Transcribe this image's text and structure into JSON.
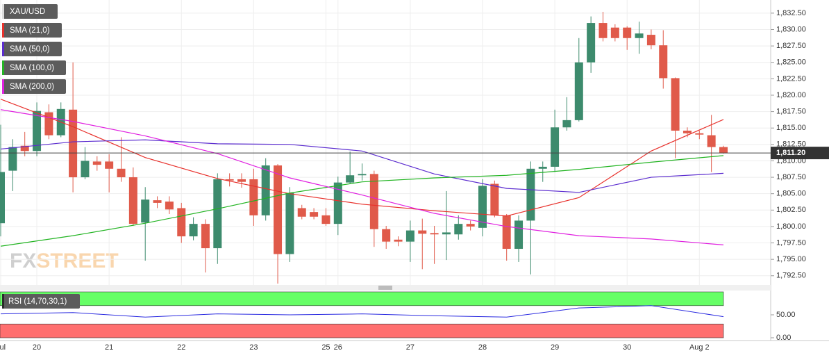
{
  "chart_data": [
    {
      "type": "candlestick",
      "categories": [
        "Jul",
        null,
        null,
        "20",
        null,
        null,
        null,
        null,
        null,
        "21",
        null,
        null,
        null,
        null,
        null,
        "22",
        null,
        null,
        null,
        null,
        null,
        "23",
        null,
        null,
        null,
        null,
        null,
        "25",
        "26",
        null,
        null,
        null,
        null,
        null,
        "27",
        null,
        null,
        null,
        null,
        null,
        "28",
        null,
        null,
        null,
        null,
        null,
        "29",
        null,
        null,
        null,
        null,
        null,
        "30",
        null,
        null,
        null,
        null,
        null,
        "Aug 2",
        null,
        null
      ],
      "series": [
        {
          "name": "XAU/USD",
          "up_color": "#3d8b6d",
          "down_color": "#e05a4a",
          "open": [
            1800.5,
            1808.5,
            1812.3,
            1811.5,
            1817.4,
            1813.9,
            1817.8,
            1807.5,
            1809.9,
            1809.9,
            1808.8,
            1807.5,
            1800.6,
            1804.0,
            1803.8,
            1802.8,
            1798.5,
            1800.4,
            1796.7,
            1807.2,
            1807.2,
            1807.2,
            1801.7,
            1809.3,
            1795.8,
            1802.8,
            1802.2,
            1801.7,
            1800.4,
            1806.7,
            1807.8,
            1808.0,
            1799.6,
            1798.0,
            1797.7,
            1799.4,
            1799.0,
            1798.8,
            1798.8,
            1800.4,
            1799.8,
            1806.5,
            1801.7,
            1796.6,
            1800.9,
            1808.8,
            1809.1,
            1815.1,
            1816.2,
            1825.0,
            1831.0,
            1830.3,
            1830.3,
            1828.7,
            1829.2,
            1827.6,
            1822.6,
            1814.6,
            1814.2,
            1813.9,
            1812.1
          ],
          "high": [
            1815.5,
            1813.3,
            1814.4,
            1818.9,
            1818.6,
            1818.9,
            1825.0,
            1812.1,
            1810.7,
            1811.0,
            1813.6,
            1809.0,
            1806.0,
            1804.6,
            1804.6,
            1803.6,
            1801.4,
            1801.1,
            1808.1,
            1808.1,
            1808.1,
            1808.8,
            1810.4,
            1809.5,
            1806.0,
            1803.3,
            1802.8,
            1802.8,
            1807.6,
            1811.4,
            1809.6,
            1808.5,
            1800.1,
            1798.5,
            1800.9,
            1801.2,
            1800.1,
            1805.4,
            1801.7,
            1800.9,
            1807.2,
            1807.0,
            1801.9,
            1801.7,
            1809.9,
            1809.9,
            1817.8,
            1819.7,
            1828.7,
            1832.0,
            1832.7,
            1830.8,
            1830.5,
            1831.2,
            1830.0,
            1829.9,
            1822.7,
            1815.1,
            1814.6,
            1817.0,
            1812.3
          ],
          "low": [
            1798.5,
            1805.4,
            1810.7,
            1810.7,
            1813.3,
            1813.6,
            1805.2,
            1807.2,
            1808.5,
            1805.2,
            1806.8,
            1800.1,
            1794.8,
            1802.8,
            1801.9,
            1797.5,
            1797.9,
            1793.0,
            1794.3,
            1806.1,
            1805.9,
            1800.1,
            1800.9,
            1791.3,
            1794.6,
            1801.1,
            1801.1,
            1800.1,
            1798.7,
            1806.5,
            1807.0,
            1796.9,
            1796.6,
            1797.0,
            1794.6,
            1793.5,
            1794.3,
            1794.9,
            1798.0,
            1799.4,
            1798.5,
            1801.4,
            1794.8,
            1794.6,
            1792.7,
            1806.8,
            1808.3,
            1814.6,
            1816.0,
            1823.4,
            1828.2,
            1828.2,
            1826.9,
            1826.3,
            1827.0,
            1821.0,
            1810.4,
            1813.6,
            1813.3,
            1808.3,
            1811.1
          ],
          "close": [
            1808.3,
            1812.1,
            1811.5,
            1817.6,
            1813.9,
            1817.9,
            1807.5,
            1810.0,
            1809.4,
            1808.8,
            1807.5,
            1800.4,
            1804.1,
            1803.6,
            1802.6,
            1798.5,
            1800.4,
            1796.7,
            1807.2,
            1807.0,
            1806.8,
            1801.7,
            1809.3,
            1795.8,
            1805.1,
            1801.5,
            1801.5,
            1800.4,
            1806.7,
            1807.8,
            1808.0,
            1799.6,
            1797.7,
            1797.7,
            1799.4,
            1798.9,
            1798.8,
            1799.1,
            1800.4,
            1800.0,
            1806.2,
            1801.7,
            1796.6,
            1800.9,
            1808.8,
            1809.1,
            1815.1,
            1816.2,
            1825.0,
            1831.0,
            1828.7,
            1828.7,
            1828.7,
            1829.4,
            1827.6,
            1822.6,
            1814.6,
            1814.2,
            1814.0,
            1812.1,
            1811.2
          ]
        }
      ],
      "overlays": [
        {
          "name": "SMA (21,0)",
          "color": "#e8312c",
          "x": [
            0,
            6,
            12,
            18,
            24,
            30,
            36,
            42,
            48,
            54,
            60
          ],
          "values": [
            1819.4,
            1815.2,
            1810.5,
            1807.3,
            1805.0,
            1803.4,
            1802.4,
            1801.6,
            1804.4,
            1811.5,
            1816.3
          ]
        },
        {
          "name": "SMA (50,0)",
          "color": "#5b2ccf",
          "x": [
            0,
            6,
            12,
            18,
            24,
            30,
            36,
            42,
            48,
            54,
            60
          ],
          "values": [
            1811.8,
            1812.9,
            1813.2,
            1812.6,
            1812.5,
            1811.5,
            1808.0,
            1805.8,
            1805.2,
            1807.5,
            1808.1
          ]
        },
        {
          "name": "SMA (100,0)",
          "color": "#22b422",
          "x": [
            0,
            6,
            12,
            18,
            24,
            30,
            36,
            42,
            48,
            54,
            60
          ],
          "values": [
            1797.0,
            1798.6,
            1800.5,
            1802.7,
            1805.1,
            1806.8,
            1807.4,
            1807.8,
            1808.7,
            1809.8,
            1810.8
          ]
        },
        {
          "name": "SMA (200,0)",
          "color": "#e020e0",
          "x": [
            0,
            6,
            12,
            18,
            24,
            30,
            36,
            42,
            48,
            54,
            60
          ],
          "values": [
            1817.8,
            1816.0,
            1813.8,
            1811.1,
            1807.4,
            1804.8,
            1802.0,
            1800.0,
            1798.6,
            1798.1,
            1797.2
          ]
        }
      ],
      "last_price": {
        "value": 1811.2,
        "label": "1,811.20"
      },
      "ylim": [
        1791.1,
        1834.5
      ],
      "yticks": [
        {
          "value": 1792.5,
          "label": "1,792.50"
        },
        {
          "value": 1795,
          "label": "1,795.00"
        },
        {
          "value": 1797.5,
          "label": "1,797.50"
        },
        {
          "value": 1800,
          "label": "1,800.00"
        },
        {
          "value": 1802.5,
          "label": "1,802.50"
        },
        {
          "value": 1805,
          "label": "1,805.00"
        },
        {
          "value": 1807.5,
          "label": "1,807.50"
        },
        {
          "value": 1810,
          "label": "1,810.00"
        },
        {
          "value": 1812.5,
          "label": "1,812.50"
        },
        {
          "value": 1815,
          "label": "1,815.00"
        },
        {
          "value": 1817.5,
          "label": "1,817.50"
        },
        {
          "value": 1820,
          "label": "1,820.00"
        },
        {
          "value": 1822.5,
          "label": "1,822.50"
        },
        {
          "value": 1825,
          "label": "1,825.00"
        },
        {
          "value": 1827.5,
          "label": "1,827.50"
        },
        {
          "value": 1830,
          "label": "1,830.00"
        },
        {
          "value": 1832.5,
          "label": "1,832.50"
        }
      ],
      "grid": true,
      "watermark": [
        "FX",
        "STREET"
      ]
    },
    {
      "type": "line",
      "series": [
        {
          "name": "RSI (14,70,30,1)",
          "color": "#2a2ae0",
          "x": [
            0,
            6,
            12,
            18,
            24,
            30,
            36,
            42,
            48,
            54,
            60
          ],
          "values": [
            52,
            55,
            45,
            52,
            50,
            52,
            48,
            45,
            65,
            70,
            46
          ]
        }
      ],
      "bands": [
        {
          "from": 70,
          "to": 100,
          "color": "#66ff66"
        },
        {
          "from": 0,
          "to": 30,
          "color": "#ff6f6f"
        }
      ],
      "ylim": [
        0,
        100
      ],
      "yticks": [
        {
          "value": 0,
          "label": "0.00"
        },
        {
          "value": 50,
          "label": "50.00"
        }
      ]
    }
  ]
}
